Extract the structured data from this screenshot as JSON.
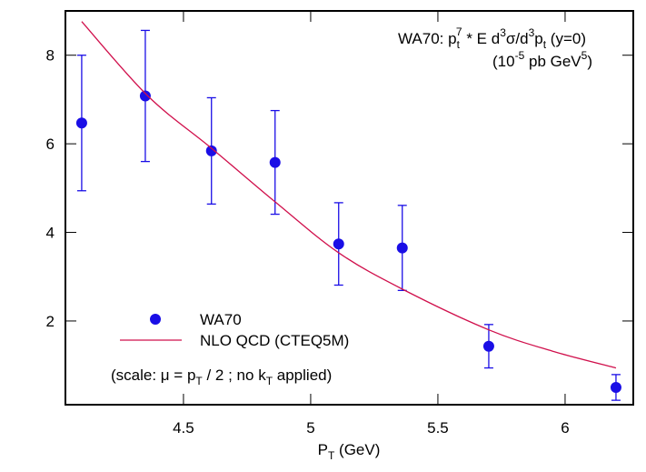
{
  "chart_data": {
    "type": "scatter",
    "title_parts": [
      "WA70:  p",
      "t",
      "7",
      " * E d",
      "3",
      "σ/d",
      "3",
      "p",
      "t",
      " (y=0)"
    ],
    "unit_parts": [
      "(10",
      "-5",
      " pb GeV",
      "5",
      ")"
    ],
    "note_parts": [
      "(scale: μ = p",
      "T",
      " / 2 ;  no k",
      "T",
      " applied)"
    ],
    "xlabel_parts": [
      "P",
      "T",
      " (GeV)"
    ],
    "xlim": [
      4.036,
      6.268
    ],
    "ylim": [
      0.11,
      9.0
    ],
    "xticks": [
      4.5,
      5,
      5.5,
      6
    ],
    "yticks": [
      2,
      4,
      6,
      8
    ],
    "series": [
      {
        "name": "WA70",
        "type": "scatter",
        "color": "#1a0ee6",
        "x": [
          4.1,
          4.35,
          4.61,
          4.86,
          5.11,
          5.36,
          5.7,
          6.2
        ],
        "values": [
          6.47,
          7.08,
          5.84,
          5.58,
          3.74,
          3.65,
          1.43,
          0.5
        ],
        "errors": [
          1.53,
          1.48,
          1.2,
          1.17,
          0.93,
          0.96,
          0.49,
          0.29
        ]
      },
      {
        "name": "NLO QCD (CTEQ5M)",
        "type": "line",
        "color": "#d0104c",
        "x": [
          4.1,
          4.36,
          4.61,
          4.86,
          5.11,
          5.36,
          5.7,
          5.95,
          6.2
        ],
        "values": [
          8.76,
          7.08,
          5.9,
          4.69,
          3.54,
          2.72,
          1.8,
          1.32,
          0.94
        ]
      }
    ]
  }
}
